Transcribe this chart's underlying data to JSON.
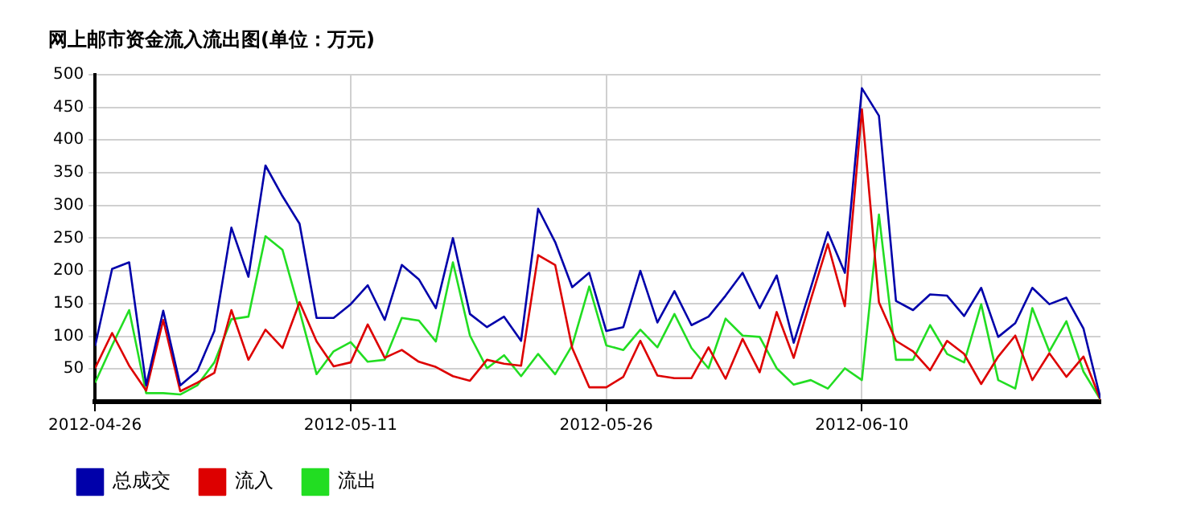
{
  "chart_data": {
    "type": "line",
    "title": "网上邮市资金流入流出图(单位：万元)",
    "x": [
      "2012-04-26",
      "2012-04-27",
      "2012-04-28",
      "2012-04-29",
      "2012-04-30",
      "2012-05-01",
      "2012-05-02",
      "2012-05-03",
      "2012-05-04",
      "2012-05-05",
      "2012-05-06",
      "2012-05-07",
      "2012-05-08",
      "2012-05-09",
      "2012-05-10",
      "2012-05-11",
      "2012-05-12",
      "2012-05-13",
      "2012-05-14",
      "2012-05-15",
      "2012-05-16",
      "2012-05-17",
      "2012-05-18",
      "2012-05-19",
      "2012-05-20",
      "2012-05-21",
      "2012-05-22",
      "2012-05-23",
      "2012-05-24",
      "2012-05-25",
      "2012-05-26",
      "2012-05-27",
      "2012-05-28",
      "2012-05-29",
      "2012-05-30",
      "2012-05-31",
      "2012-06-01",
      "2012-06-02",
      "2012-06-03",
      "2012-06-04",
      "2012-06-05",
      "2012-06-06",
      "2012-06-07",
      "2012-06-08",
      "2012-06-09",
      "2012-06-10",
      "2012-06-11",
      "2012-06-12",
      "2012-06-13",
      "2012-06-14",
      "2012-06-15",
      "2012-06-16",
      "2012-06-17",
      "2012-06-18",
      "2012-06-19",
      "2012-06-20",
      "2012-06-21",
      "2012-06-22",
      "2012-06-23",
      "2012-06-24"
    ],
    "series": [
      {
        "name": "总成交",
        "color": "#0000aa",
        "values": [
          85,
          203,
          213,
          25,
          139,
          25,
          47,
          108,
          266,
          191,
          361,
          314,
          272,
          128,
          128,
          149,
          178,
          125,
          209,
          187,
          143,
          250,
          134,
          114,
          130,
          93,
          295,
          244,
          175,
          197,
          108,
          114,
          200,
          121,
          169,
          117,
          130,
          162,
          197,
          143,
          193,
          90,
          174,
          259,
          197,
          479,
          437,
          154,
          140,
          164,
          162,
          131,
          174,
          99,
          120,
          174,
          149,
          159,
          112,
          5
        ]
      },
      {
        "name": "流入",
        "color": "#dd0000",
        "values": [
          51,
          105,
          55,
          17,
          125,
          16,
          29,
          44,
          140,
          64,
          110,
          82,
          152,
          92,
          54,
          60,
          118,
          67,
          79,
          61,
          53,
          39,
          32,
          64,
          58,
          55,
          224,
          209,
          82,
          22,
          22,
          38,
          93,
          40,
          36,
          36,
          83,
          35,
          96,
          45,
          137,
          67,
          156,
          241,
          146,
          447,
          152,
          93,
          77,
          48,
          93,
          73,
          27,
          69,
          101,
          33,
          74,
          38,
          69,
          3
        ]
      },
      {
        "name": "流出",
        "color": "#22dd22",
        "values": [
          29,
          86,
          140,
          13,
          13,
          11,
          25,
          60,
          126,
          130,
          253,
          232,
          139,
          42,
          77,
          91,
          61,
          64,
          128,
          124,
          92,
          213,
          101,
          51,
          71,
          39,
          73,
          42,
          86,
          176,
          86,
          79,
          110,
          83,
          134,
          82,
          51,
          127,
          101,
          99,
          51,
          26,
          33,
          20,
          51,
          33,
          286,
          64,
          64,
          117,
          73,
          60,
          149,
          33,
          20,
          143,
          77,
          123,
          46,
          3
        ]
      }
    ],
    "xlim": [
      "2012-04-26",
      "2012-06-24"
    ],
    "xticks": [
      "2012-04-26",
      "2012-05-11",
      "2012-05-26",
      "2012-06-10"
    ],
    "ylim": [
      0,
      500
    ],
    "yticks": [
      50,
      100,
      150,
      200,
      250,
      300,
      350,
      400,
      450,
      500
    ],
    "grid": true,
    "legend": "bottom",
    "marker": "none",
    "line_style": "solid"
  }
}
